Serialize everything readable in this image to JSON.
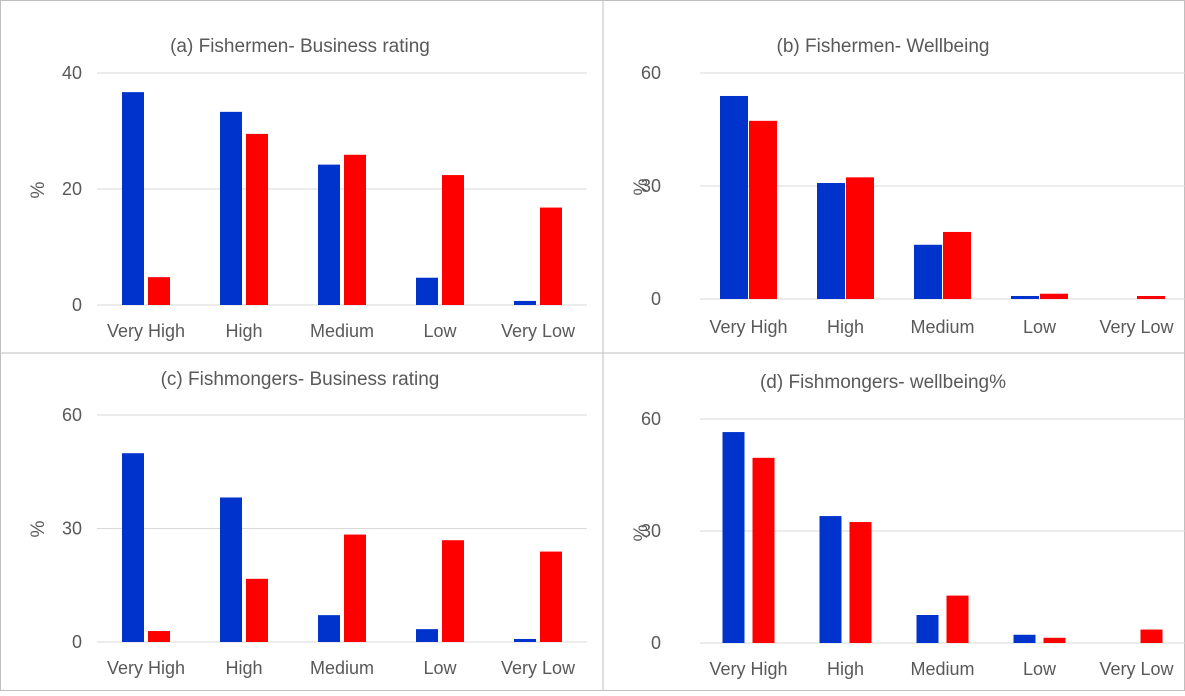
{
  "colors": {
    "series_a": "#0033cc",
    "series_b": "#ff0000",
    "grid": "#d9d9d9",
    "text": "#595959",
    "divider": "#bfbfbf"
  },
  "chart_data": [
    {
      "type": "bar",
      "title": "(a) Fishermen- Business rating",
      "ylabel": "%",
      "categories": [
        "Very High",
        "High",
        "Medium",
        "Low",
        "Very Low"
      ],
      "series": [
        {
          "values": [
            36.7,
            33.3,
            24.2,
            4.7,
            0.7
          ]
        },
        {
          "values": [
            4.8,
            29.5,
            25.9,
            22.4,
            16.8
          ]
        }
      ],
      "yticks": [
        "0",
        "20",
        "40"
      ],
      "ylim": [
        0,
        40
      ],
      "grid": true
    },
    {
      "type": "bar",
      "title": "(b) Fishermen- Wellbeing",
      "ylabel": "%",
      "categories": [
        "Very High",
        "High",
        "Medium",
        "Low",
        "Very Low"
      ],
      "series": [
        {
          "values": [
            53.9,
            30.8,
            14.4,
            0.8,
            0.0
          ]
        },
        {
          "values": [
            47.3,
            32.3,
            17.8,
            1.4,
            0.8
          ]
        }
      ],
      "yticks": [
        "0",
        "30",
        "60"
      ],
      "ylim": [
        0,
        60
      ],
      "grid": true
    },
    {
      "type": "bar",
      "title": "(c) Fishmongers- Business rating",
      "ylabel": "%",
      "categories": [
        "Very High",
        "High",
        "Medium",
        "Low",
        "Very Low"
      ],
      "series": [
        {
          "values": [
            49.9,
            38.2,
            7.1,
            3.4,
            0.8
          ]
        },
        {
          "values": [
            2.9,
            16.7,
            28.4,
            26.9,
            23.9
          ]
        }
      ],
      "yticks": [
        "0",
        "30",
        "60"
      ],
      "ylim": [
        0,
        60
      ],
      "grid": true
    },
    {
      "type": "bar",
      "title": "(d) Fishmongers- wellbeing%",
      "ylabel": "%",
      "categories": [
        "Very High",
        "High",
        "Medium",
        "Low",
        "Very Low"
      ],
      "series": [
        {
          "values": [
            56.5,
            34.0,
            7.5,
            2.2,
            0.0
          ]
        },
        {
          "values": [
            49.6,
            32.4,
            12.7,
            1.4,
            3.6
          ]
        }
      ],
      "yticks": [
        "0",
        "30",
        "60"
      ],
      "ylim": [
        0,
        60
      ],
      "grid": true
    }
  ]
}
